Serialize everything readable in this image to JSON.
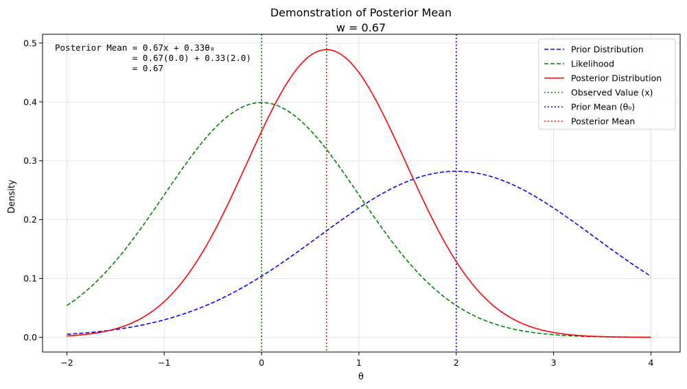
{
  "chart_data": {
    "type": "line",
    "title": "Demonstration of Posterior Mean",
    "subtitle": "w = 0.67",
    "xlabel": "θ",
    "ylabel": "Density",
    "xlim": [
      -2.25,
      4.3
    ],
    "ylim": [
      -0.025,
      0.515
    ],
    "xticks": [
      -2,
      -1,
      0,
      1,
      2,
      3,
      4
    ],
    "xtick_labels": [
      "−2",
      "−1",
      "0",
      "1",
      "2",
      "3",
      "4"
    ],
    "yticks": [
      0.0,
      0.1,
      0.2,
      0.3,
      0.4,
      0.5
    ],
    "ytick_labels": [
      "0.0",
      "0.1",
      "0.2",
      "0.3",
      "0.4",
      "0.5"
    ],
    "grid": true,
    "legend_position": "top-right",
    "series": [
      {
        "name": "Prior Distribution",
        "style": "dashed",
        "color": "#0000ff",
        "distribution": {
          "kind": "normal",
          "mean": 2.0,
          "sd": 1.414
        },
        "x_range": [
          -2,
          4
        ]
      },
      {
        "name": "Likelihood",
        "style": "dashed",
        "color": "#008000",
        "distribution": {
          "kind": "normal",
          "mean": 0.0,
          "sd": 1.0
        },
        "x_range": [
          -2,
          4
        ]
      },
      {
        "name": "Posterior Distribution",
        "style": "solid",
        "color": "#ff0000",
        "distribution": {
          "kind": "normal",
          "mean": 0.667,
          "sd": 0.816
        },
        "x_range": [
          -2,
          4
        ]
      }
    ],
    "vlines": [
      {
        "name": "Observed Value (x)",
        "x": 0.0,
        "color": "#008000",
        "style": "dotted"
      },
      {
        "name": "Prior Mean (θ₀)",
        "x": 2.0,
        "color": "#0000ff",
        "style": "dotted"
      },
      {
        "name": "Posterior Mean",
        "x": 0.667,
        "color": "#ff0000",
        "style": "dotted"
      }
    ],
    "annotation": {
      "lines": [
        "Posterior Mean = 0.67x + 0.33θ₀",
        "               = 0.67(0.0) + 0.33(2.0)",
        "               = 0.67"
      ]
    }
  }
}
